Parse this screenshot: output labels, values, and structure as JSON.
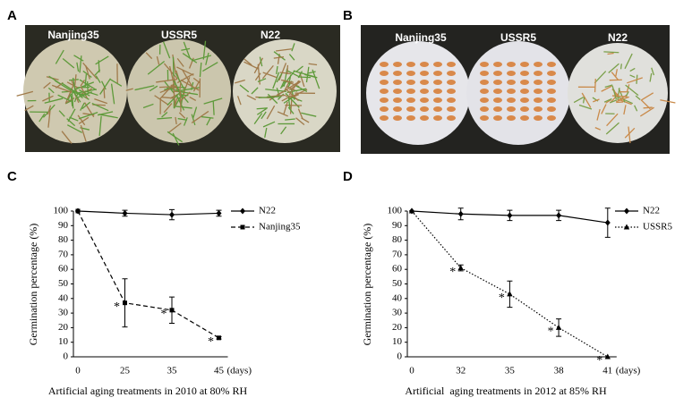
{
  "panels": [
    {
      "label": "A",
      "varieties": [
        "Nanjing35",
        "USSR5",
        "N22"
      ]
    },
    {
      "label": "B",
      "varieties": [
        "Nanjing35",
        "USSR5",
        "N22"
      ]
    }
  ],
  "chart_data": [
    {
      "type": "line",
      "panel_label": "C",
      "categories": [
        "0",
        "25",
        "35",
        "45"
      ],
      "x_unit": "(days)",
      "x_label": "Artificial aging treatments in 2010 at 80% RH",
      "y_label": "Germination percentage (%)",
      "ylim": [
        0,
        100
      ],
      "yticks": [
        0,
        10,
        20,
        30,
        40,
        50,
        60,
        70,
        80,
        90,
        100
      ],
      "legend": "upper right",
      "series": [
        {
          "name": "N22",
          "color": "#000000",
          "dash": "solid",
          "marker": "diamond",
          "values": [
            100,
            98.5,
            97.5,
            98.5
          ],
          "errors": [
            0,
            2,
            3.5,
            2
          ],
          "significance": [
            null,
            null,
            null,
            null
          ]
        },
        {
          "name": "Nanjing35",
          "color": "#000000",
          "dash": "dashed",
          "marker": "square",
          "values": [
            100,
            37,
            32,
            13
          ],
          "errors": [
            0,
            16.5,
            9,
            0.8
          ],
          "significance": [
            null,
            "*",
            "*",
            "*"
          ]
        }
      ]
    },
    {
      "type": "line",
      "panel_label": "D",
      "categories": [
        "0",
        "32",
        "35",
        "38",
        "41"
      ],
      "x_unit": "(days)",
      "x_label": "Artificial  aging treatments in 2012 at 85% RH",
      "y_label": "Germination percentage (%)",
      "ylim": [
        0,
        100
      ],
      "yticks": [
        0,
        10,
        20,
        30,
        40,
        50,
        60,
        70,
        80,
        90,
        100
      ],
      "legend": "upper right",
      "series": [
        {
          "name": "N22",
          "color": "#000000",
          "dash": "solid",
          "marker": "diamond",
          "values": [
            100,
            98,
            97,
            97,
            92
          ],
          "errors": [
            0,
            4,
            3.5,
            3.5,
            10
          ],
          "significance": [
            null,
            null,
            null,
            null,
            null
          ]
        },
        {
          "name": "USSR5",
          "color": "#000000",
          "dash": "dotted",
          "marker": "triangle",
          "values": [
            100,
            61,
            43,
            20,
            0
          ],
          "errors": [
            0,
            2,
            9,
            6,
            0
          ],
          "significance": [
            null,
            "*",
            "*",
            "*",
            "*"
          ]
        }
      ]
    }
  ]
}
